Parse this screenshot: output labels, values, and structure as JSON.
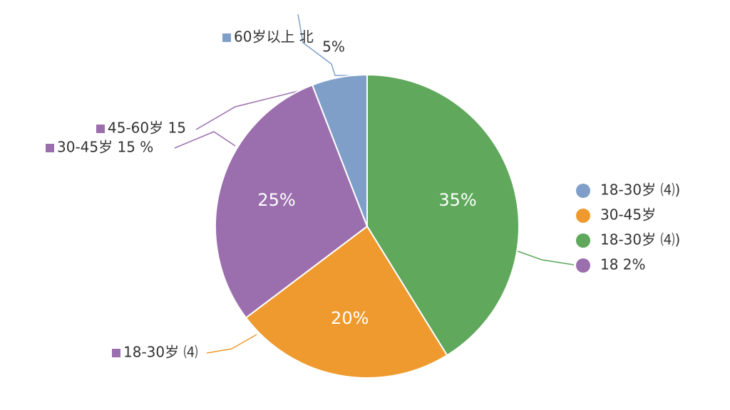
{
  "chart_data": {
    "type": "pie",
    "values": [
      35,
      20,
      25,
      5
    ],
    "value_labels": [
      "35%",
      "20%",
      "25%",
      "5%"
    ],
    "colors": [
      "#5fa85c",
      "#ef9a2e",
      "#9b6fae",
      "#7f9fc9"
    ],
    "annotations": [
      {
        "text": "60岁以上 北",
        "color": "#7f9fc9"
      },
      {
        "text": "45-60岁 15",
        "color": "#9b6fae"
      },
      {
        "text": "30-45岁 15 %",
        "color": "#9b6fae"
      },
      {
        "text": "18-30岁 ⑷",
        "color": "#9b6fae"
      }
    ],
    "legend": [
      {
        "label": "18-30岁 ⑷)",
        "color": "#7f9fc9"
      },
      {
        "label": "30-45岁",
        "color": "#ef9a2e"
      },
      {
        "label": "18-30岁 ⑷)",
        "color": "#5fa85c"
      },
      {
        "label": "18 2%",
        "color": "#9b6fae"
      }
    ]
  }
}
